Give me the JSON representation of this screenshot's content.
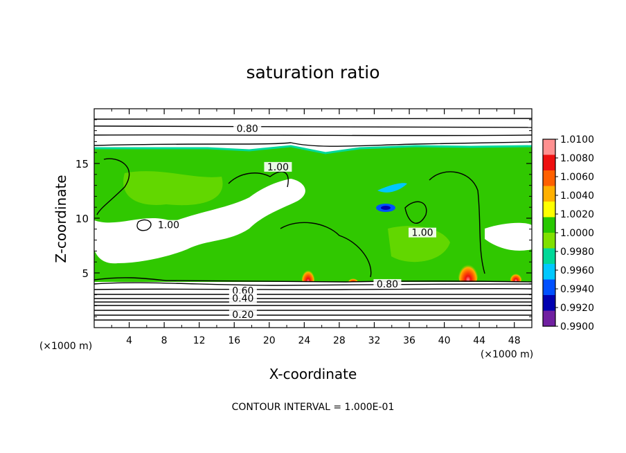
{
  "chart_data": {
    "type": "heatmap",
    "title": "saturation ratio",
    "xlabel": "X-coordinate",
    "ylabel": "Z-coordinate",
    "x_unit_left": "(×1000 m)",
    "x_unit_right": "(×1000 m)",
    "xlim": [
      0,
      50
    ],
    "ylim": [
      0,
      20
    ],
    "x_ticks": [
      4,
      8,
      12,
      16,
      20,
      24,
      28,
      32,
      36,
      40,
      44,
      48
    ],
    "x_tick_labels": [
      "4",
      "8",
      "12",
      "16",
      "20",
      "24",
      "28",
      "32",
      "36",
      "40",
      "44",
      "48"
    ],
    "y_ticks": [
      5,
      10,
      15
    ],
    "y_tick_labels": [
      "5",
      "10",
      "15"
    ],
    "footer": "CONTOUR INTERVAL = 1.000E-01",
    "contour_labels": [
      {
        "text": "0.80",
        "x": 17.5,
        "z": 18.0
      },
      {
        "text": "1.00",
        "x": 21.0,
        "z": 14.5
      },
      {
        "text": "1.00",
        "x": 8.5,
        "z": 9.2
      },
      {
        "text": "1.00",
        "x": 37.5,
        "z": 8.5
      },
      {
        "text": "0.80",
        "x": 33.5,
        "z": 3.8
      },
      {
        "text": "0.60",
        "x": 17.0,
        "z": 3.2
      },
      {
        "text": "0.40",
        "x": 17.0,
        "z": 2.5
      },
      {
        "text": "0.20",
        "x": 17.0,
        "z": 1.0
      }
    ],
    "colorbar": {
      "labels": [
        "1.0100",
        "1.0080",
        "1.0060",
        "1.0040",
        "1.0020",
        "1.0000",
        "0.9980",
        "0.9960",
        "0.9940",
        "0.9920",
        "0.9900"
      ],
      "colors": [
        "#ff9090",
        "#ee1010",
        "#ff6000",
        "#ffb000",
        "#ffff00",
        "#28c800",
        "#80e000",
        "#00d898",
        "#00c8ff",
        "#0050ff",
        "#0000b0",
        "#7020a0"
      ],
      "range": [
        0.99,
        1.01
      ]
    },
    "regions": {
      "cloud_top_z": 16.0,
      "cloud_base_z": 4.0,
      "background_value": 1.0,
      "maxima": [
        {
          "x": 24.5,
          "z": 4.6,
          "value": 1.008
        },
        {
          "x": 42.8,
          "z": 5.0,
          "value": 1.01
        },
        {
          "x": 48.0,
          "z": 4.5,
          "value": 1.006
        },
        {
          "x": 29.5,
          "z": 4.4,
          "value": 1.004
        }
      ],
      "minima": [
        {
          "x": 33.5,
          "z": 10.8,
          "value": 0.992
        },
        {
          "x": 34.5,
          "z": 13.0,
          "value": 0.995
        }
      ]
    }
  }
}
